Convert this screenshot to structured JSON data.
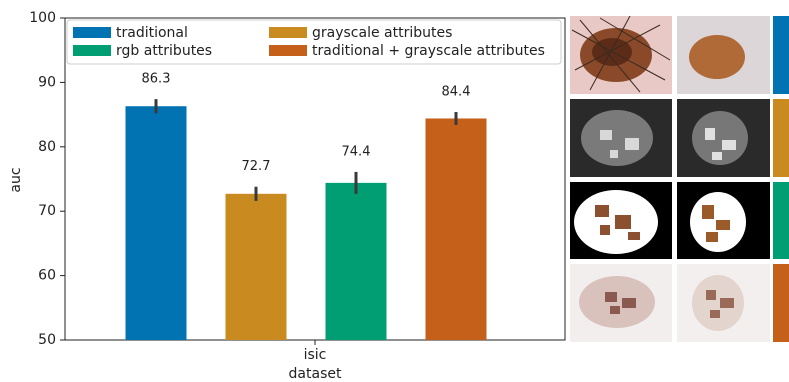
{
  "chart_data": {
    "type": "bar",
    "categories": [
      "isic"
    ],
    "x_label": "dataset",
    "y_label": "auc",
    "ylim": [
      50,
      100
    ],
    "yticks": [
      50,
      60,
      70,
      80,
      90,
      100
    ],
    "grid": false,
    "legend": "upper left",
    "series": [
      {
        "name": "traditional",
        "color": "#0173b2",
        "values": [
          86.3
        ],
        "errors": [
          1.1
        ]
      },
      {
        "name": "grayscale attributes",
        "color": "#c98a20",
        "values": [
          72.7
        ],
        "errors": [
          1.1
        ]
      },
      {
        "name": "rgb attributes",
        "color": "#029e73",
        "values": [
          74.4
        ],
        "errors": [
          1.7
        ]
      },
      {
        "name": "traditional + grayscale attributes",
        "color": "#c5601a",
        "values": [
          84.4
        ],
        "errors": [
          1.0
        ]
      }
    ]
  }
}
